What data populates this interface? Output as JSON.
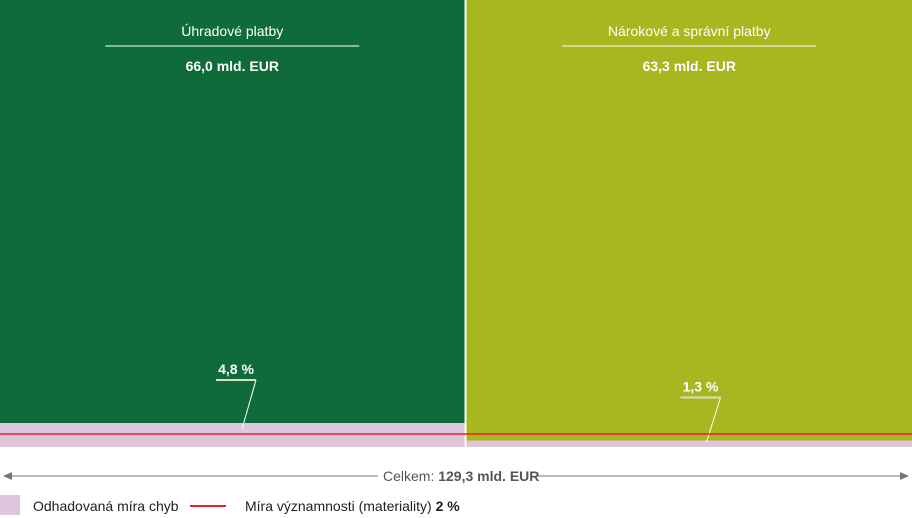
{
  "chart_data": {
    "type": "bar",
    "subtype": "marimekko",
    "categories": [
      "Úhradové platby",
      "Nárokové a správní platby"
    ],
    "amounts": [
      66.0,
      63.3
    ],
    "amount_labels": [
      "66,0 mld. EUR",
      "63,3 mld. EUR"
    ],
    "error_rates": [
      4.8,
      1.3
    ],
    "error_rate_labels": [
      "4,8 %",
      "1,3 %"
    ],
    "materiality_threshold": 2,
    "total_prefix": "Celkem:",
    "total_label": "129,3 mld. EUR",
    "legend": {
      "error_label": "Odhadovaná míra chyb",
      "materiality_label": "Míra významnosti (materiality)",
      "materiality_value": "2 %",
      "placement": "bottom-left"
    },
    "colors": {
      "bars": [
        "#106b3b",
        "#a8b620"
      ],
      "error": "#dfc6dd",
      "materiality": "#e2232a",
      "axis": "#777777"
    }
  }
}
